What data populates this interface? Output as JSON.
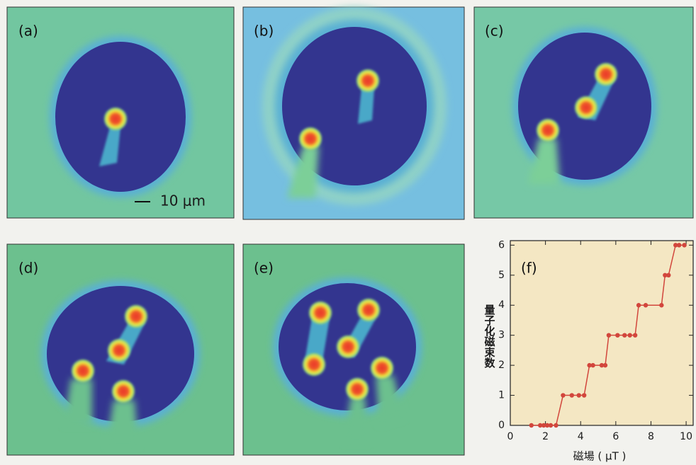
{
  "panels": [
    {
      "label": "(a)"
    },
    {
      "label": "(b)"
    },
    {
      "label": "(c)"
    },
    {
      "label": "(d)"
    },
    {
      "label": "(e)"
    }
  ],
  "scale_bar": "10 μm",
  "chart_data": {
    "type": "line",
    "annotation": "(f)",
    "x_label": "磁場 ( μT )",
    "y_label": "量子化磁束数",
    "x": [
      1.2,
      1.7,
      1.9,
      2.1,
      2.3,
      2.6,
      3.0,
      3.5,
      3.9,
      4.2,
      4.5,
      4.7,
      5.2,
      5.4,
      5.6,
      6.1,
      6.5,
      6.8,
      7.1,
      7.3,
      7.7,
      8.6,
      8.8,
      9.0,
      9.4,
      9.6,
      9.9
    ],
    "values": [
      0,
      0,
      0,
      0,
      0,
      0,
      1,
      1,
      1,
      1,
      2,
      2,
      2,
      2,
      3,
      3,
      3,
      3,
      3,
      4,
      4,
      4,
      5,
      5,
      6,
      6,
      6
    ],
    "color": "#d2463c",
    "background": "#f4e7c3",
    "xlim": [
      0,
      10.4
    ],
    "ylim": [
      0,
      6.15
    ],
    "xticks": [
      0,
      2,
      4,
      6,
      8,
      10
    ],
    "yticks": [
      0,
      1,
      2,
      3,
      4,
      5,
      6
    ]
  }
}
